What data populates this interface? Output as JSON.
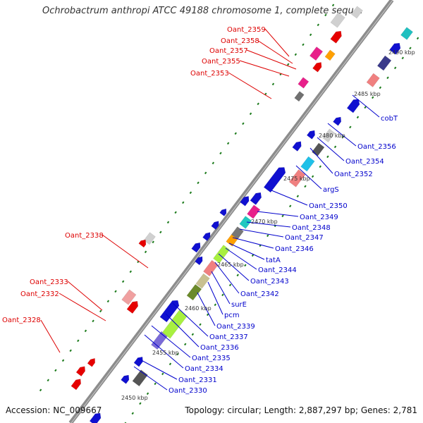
{
  "title": "Ochrobactrum anthropi ATCC 49188 chromosome 1, complete sequ…",
  "accession": "Accession: NC_009667",
  "summary": "Topology: circular; Length: 2,887,297 bp; Genes: 2,781",
  "colors": {
    "backbone": "#8c8c8c",
    "forward_gene": "#1010d0",
    "reverse_gene": "#e60000",
    "label_blue": "#0000cc",
    "label_red": "#dd0000",
    "tick": "#1a7a1a"
  },
  "scale_labels": [
    "2450 kbp",
    "2455 kbp",
    "2460 kbp",
    "2465 kbp",
    "2470 kbp",
    "2475 kbp",
    "2480 kbp",
    "2485 kbp",
    "2490 kbp"
  ],
  "labels_left": [
    "Oant_2359",
    "Oant_2358",
    "Oant_2357",
    "Oant_2355",
    "Oant_2353",
    "Oant_2338",
    "Oant_2333",
    "Oant_2332",
    "Oant_2328"
  ],
  "labels_right": [
    "cobT",
    "Oant_2356",
    "Oant_2354",
    "Oant_2352",
    "argS",
    "Oant_2350",
    "Oant_2349",
    "Oant_2348",
    "Oant_2347",
    "Oant_2346",
    "tatA",
    "Oant_2344",
    "Oant_2343",
    "Oant_2342",
    "surE",
    "pcm",
    "Oant_2339",
    "Oant_2337",
    "Oant_2336",
    "Oant_2335",
    "Oant_2334",
    "Oant_2331",
    "Oant_2330"
  ]
}
